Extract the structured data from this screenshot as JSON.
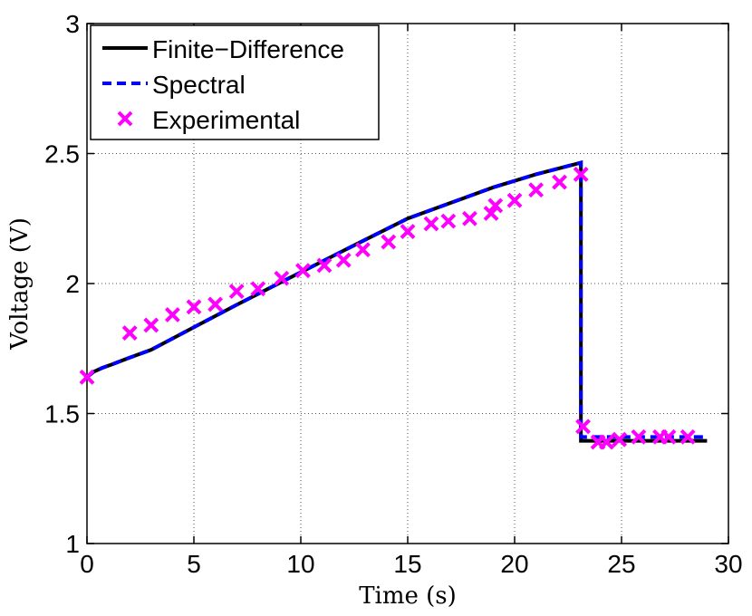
{
  "chart_data": {
    "type": "line",
    "title": "",
    "xlabel": "Time (s)",
    "ylabel": "Voltage (V)",
    "xlim": [
      0,
      30
    ],
    "ylim": [
      1,
      3
    ],
    "xticks": [
      0,
      5,
      10,
      15,
      20,
      25,
      30
    ],
    "yticks": [
      1,
      1.5,
      2,
      2.5,
      3
    ],
    "xtick_labels": [
      "0",
      "5",
      "10",
      "15",
      "20",
      "25",
      "30"
    ],
    "ytick_labels": [
      "1",
      "1.5",
      "2",
      "2.5",
      "3"
    ],
    "grid": true,
    "legend_position": "top-left",
    "series": [
      {
        "name": "Finite−Difference",
        "style": "solid",
        "color": "#000000",
        "x": [
          0,
          0.3,
          0.7,
          1.2,
          2,
          3,
          5,
          7,
          9,
          11,
          13,
          15,
          17,
          19,
          21,
          23.1,
          23.1,
          23.3,
          25,
          27,
          29
        ],
        "y": [
          1.64,
          1.66,
          1.675,
          1.69,
          1.715,
          1.745,
          1.832,
          1.918,
          2.002,
          2.085,
          2.168,
          2.25,
          2.31,
          2.37,
          2.42,
          2.465,
          1.395,
          1.395,
          1.395,
          1.395,
          1.395
        ]
      },
      {
        "name": "Spectral",
        "style": "dashed",
        "color": "#0000ff",
        "x": [
          0,
          0.3,
          0.7,
          1.2,
          2,
          3,
          5,
          7,
          9,
          11,
          13,
          15,
          17,
          19,
          21,
          23.1,
          23.1,
          23.3,
          25,
          27,
          29
        ],
        "y": [
          1.64,
          1.66,
          1.675,
          1.69,
          1.715,
          1.745,
          1.832,
          1.918,
          2.002,
          2.085,
          2.168,
          2.25,
          2.31,
          2.37,
          2.42,
          2.465,
          1.41,
          1.41,
          1.41,
          1.41,
          1.41
        ]
      },
      {
        "name": "Experimental",
        "style": "markers",
        "marker": "x",
        "color": "#ff00ff",
        "x": [
          0,
          2,
          3,
          4,
          5,
          6,
          7,
          8,
          9.1,
          10.1,
          11.1,
          12,
          12.9,
          14.1,
          15,
          16.1,
          16.9,
          17.9,
          18.9,
          19.1,
          20,
          21,
          22.1,
          23.1,
          23.2,
          23.9,
          24.3,
          24.9,
          25.8,
          26.8,
          27.2,
          28.1
        ],
        "y": [
          1.64,
          1.81,
          1.84,
          1.88,
          1.91,
          1.92,
          1.97,
          1.98,
          2.02,
          2.05,
          2.07,
          2.09,
          2.13,
          2.16,
          2.2,
          2.23,
          2.24,
          2.25,
          2.27,
          2.3,
          2.32,
          2.36,
          2.39,
          2.42,
          1.45,
          1.39,
          1.39,
          1.4,
          1.41,
          1.41,
          1.41,
          1.41
        ]
      }
    ]
  }
}
